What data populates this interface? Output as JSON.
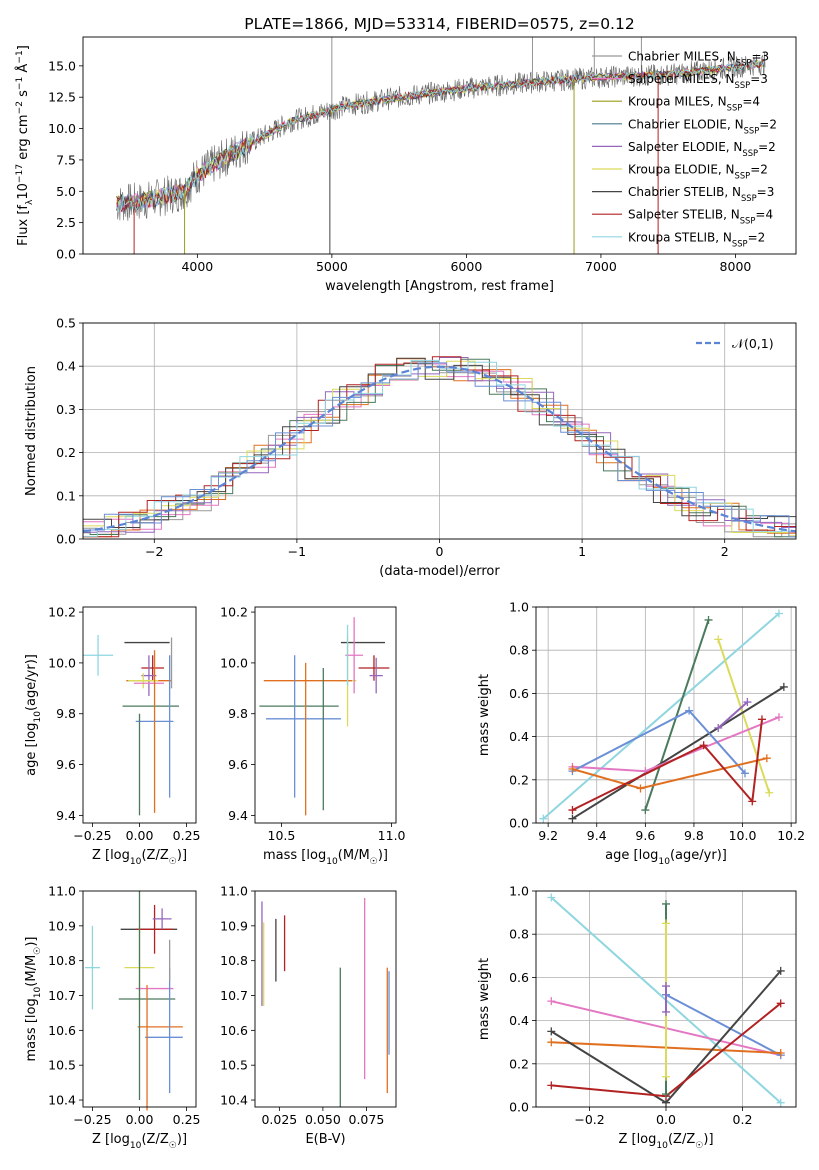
{
  "chart_data": [
    {
      "type": "line",
      "title": "PLATE=1866, MJD=53314, FIBERID=0575, z=0.12",
      "xlabel": "wavelength [Angstrom, rest frame]",
      "ylabel": "Flux [f_λ10^-17 erg cm^-2 s^-1 Å^-1]",
      "xlim": [
        3150,
        8450
      ],
      "ylim": [
        0,
        17.3
      ],
      "xticks": [
        "4000",
        "5000",
        "6000",
        "7000",
        "8000"
      ],
      "yticks": [
        "0.0",
        "2.5",
        "5.0",
        "7.5",
        "10.0",
        "12.5",
        "15.0"
      ],
      "legend_position": "top-right",
      "legend": [
        {
          "label": "Chabrier MILES, N_SSP=3",
          "color": "#999999"
        },
        {
          "label": "Salpeter MILES, N_SSP=3",
          "color": "#e377c2"
        },
        {
          "label": "Kroupa MILES, N_SSP=4",
          "color": "#9c9c1a"
        },
        {
          "label": "Chabrier ELODIE, N_SSP=2",
          "color": "#4a7a8c"
        },
        {
          "label": "Salpeter ELODIE, N_SSP=2",
          "color": "#9467bd"
        },
        {
          "label": "Kroupa ELODIE, N_SSP=2",
          "color": "#dbdb5b"
        },
        {
          "label": "Chabrier STELIB, N_SSP=3",
          "color": "#444444"
        },
        {
          "label": "Salpeter STELIB, N_SSP=4",
          "color": "#b22222"
        },
        {
          "label": "Kroupa STELIB, N_SSP=2",
          "color": "#8fd6e0"
        }
      ],
      "spectrum_start_wavelength": 3400,
      "spectrum_end_wavelength": 8220,
      "continuum_x": [
        3400,
        3600,
        3900,
        4000,
        4300,
        4700,
        5100,
        5500,
        6000,
        6500,
        7000,
        7500,
        8000,
        8220
      ],
      "continuum_y": [
        4.0,
        4.2,
        5.0,
        6.3,
        8.3,
        10.6,
        11.8,
        12.5,
        13.2,
        13.7,
        14.1,
        14.3,
        14.9,
        15.2
      ]
    },
    {
      "type": "histogram",
      "xlabel": "(data-model)/error",
      "ylabel": "Normed distribution",
      "xlim": [
        -2.5,
        2.5
      ],
      "ylim": [
        0,
        0.5
      ],
      "xticks": [
        "−2",
        "−1",
        "0",
        "1",
        "2"
      ],
      "yticks": [
        "0.0",
        "0.1",
        "0.2",
        "0.3",
        "0.4",
        "0.5"
      ],
      "grid": true,
      "legend_position": "top-right",
      "reference_curve": {
        "label": "𝒩(0,1)",
        "color": "#5b84d6",
        "style": "dashed"
      },
      "series_colors": [
        "#999999",
        "#e377c2",
        "#e07020",
        "#4a7a5c",
        "#9467bd",
        "#dbdb5b",
        "#444444",
        "#b22222",
        "#8fd6e0",
        "#6b8fd6"
      ]
    },
    {
      "type": "scatter",
      "xlabel": "Z [log10(Z/Z☉)]",
      "ylabel": "age  [log10(age/yr)]",
      "xlim": [
        -0.3,
        0.3
      ],
      "ylim": [
        9.37,
        10.22
      ],
      "xticks": [
        "−0.25",
        "0.00",
        "0.25"
      ],
      "yticks": [
        "9.4",
        "9.6",
        "9.8",
        "10.0",
        "10.2"
      ],
      "errorbars": [
        {
          "x": -0.22,
          "y": 10.03,
          "xerr": 0.08,
          "yerr": 0.08,
          "color": "#8fd6e0"
        },
        {
          "x": 0.04,
          "y": 10.08,
          "xerr": 0.12,
          "yerr": 0.0,
          "color": "#444444"
        },
        {
          "x": 0.07,
          "y": 9.98,
          "xerr": 0.06,
          "yerr": 0.05,
          "color": "#b22222"
        },
        {
          "x": 0.05,
          "y": 9.95,
          "xerr": 0.04,
          "yerr": 0.08,
          "color": "#9467bd"
        },
        {
          "x": 0.05,
          "y": 9.93,
          "xerr": 0.12,
          "yerr": 0.0,
          "color": "#e07020"
        },
        {
          "x": 0.02,
          "y": 9.93,
          "xerr": 0.08,
          "yerr": 0.03,
          "color": "#dbdb5b"
        },
        {
          "x": 0.05,
          "y": 9.92,
          "xerr": 0.08,
          "yerr": 0.0,
          "color": "#e377c2"
        },
        {
          "x": 0.06,
          "y": 9.83,
          "xerr": 0.15,
          "yerr": 0.0,
          "color": "#4a7a5c"
        },
        {
          "x": 0.08,
          "y": 9.77,
          "xerr": 0.1,
          "yerr": 0.0,
          "color": "#6b8fd6"
        },
        {
          "x": 0.08,
          "y": 9.73,
          "xerr": 0.0,
          "yerr": 0.32,
          "color": "#e07020"
        },
        {
          "x": 0.0,
          "y": 9.6,
          "xerr": 0.0,
          "yerr": 0.2,
          "color": "#4a7a5c"
        },
        {
          "x": 0.16,
          "y": 9.75,
          "xerr": 0.0,
          "yerr": 0.28,
          "color": "#6b8fd6"
        },
        {
          "x": 0.17,
          "y": 10.0,
          "xerr": 0.0,
          "yerr": 0.1,
          "color": "#999999"
        }
      ]
    },
    {
      "type": "scatter",
      "xlabel": "mass [log10(M/M☉)]",
      "ylabel": "",
      "xlim": [
        10.38,
        11.02
      ],
      "ylim": [
        9.37,
        10.22
      ],
      "xticks": [
        "10.5",
        "11.0"
      ],
      "yticks": [
        "9.4",
        "9.6",
        "9.8",
        "10.0",
        "10.2"
      ],
      "errorbars": [
        {
          "x": 10.87,
          "y": 10.08,
          "xerr": 0.1,
          "yerr": 0.0,
          "color": "#444444"
        },
        {
          "x": 10.92,
          "y": 9.98,
          "xerr": 0.07,
          "yerr": 0.05,
          "color": "#b22222"
        },
        {
          "x": 10.93,
          "y": 9.95,
          "xerr": 0.03,
          "yerr": 0.07,
          "color": "#9467bd"
        },
        {
          "x": 10.8,
          "y": 9.93,
          "xerr": 0.04,
          "yerr": 0.18,
          "color": "#dbdb5b"
        },
        {
          "x": 10.62,
          "y": 9.93,
          "xerr": 0.2,
          "yerr": 0.0,
          "color": "#e07020"
        },
        {
          "x": 10.83,
          "y": 10.03,
          "xerr": 0.04,
          "yerr": 0.15,
          "color": "#e377c2"
        },
        {
          "x": 10.58,
          "y": 9.83,
          "xerr": 0.18,
          "yerr": 0.0,
          "color": "#4a7a5c"
        },
        {
          "x": 10.6,
          "y": 9.78,
          "xerr": 0.17,
          "yerr": 0.0,
          "color": "#6b8fd6"
        },
        {
          "x": 10.56,
          "y": 9.75,
          "xerr": 0.0,
          "yerr": 0.28,
          "color": "#6b8fd6"
        },
        {
          "x": 10.61,
          "y": 9.7,
          "xerr": 0.0,
          "yerr": 0.3,
          "color": "#e07020"
        },
        {
          "x": 10.69,
          "y": 9.7,
          "xerr": 0.0,
          "yerr": 0.28,
          "color": "#4a7a5c"
        },
        {
          "x": 10.8,
          "y": 10.03,
          "xerr": 0.0,
          "yerr": 0.12,
          "color": "#8fd6e0"
        }
      ]
    },
    {
      "type": "line",
      "xlabel": "age  [log10(age/yr)]",
      "ylabel": "mass weight",
      "xlim": [
        9.15,
        10.22
      ],
      "ylim": [
        0,
        1.0
      ],
      "xticks": [
        "9.2",
        "9.4",
        "9.6",
        "9.8",
        "10.0",
        "10.2"
      ],
      "yticks": [
        "0.0",
        "0.2",
        "0.4",
        "0.6",
        "0.8",
        "1.0"
      ],
      "grid": true,
      "series": [
        {
          "color": "#8fd6e0",
          "x": [
            9.18,
            10.15
          ],
          "y": [
            0.02,
            0.97
          ]
        },
        {
          "color": "#4a7a5c",
          "x": [
            9.6,
            9.86
          ],
          "y": [
            0.06,
            0.94
          ]
        },
        {
          "color": "#dbdb5b",
          "x": [
            9.9,
            10.11
          ],
          "y": [
            0.85,
            0.14
          ]
        },
        {
          "color": "#444444",
          "x": [
            9.3,
            10.17
          ],
          "y": [
            0.02,
            0.63
          ]
        },
        {
          "color": "#9467bd",
          "x": [
            9.9,
            10.02
          ],
          "y": [
            0.44,
            0.56
          ]
        },
        {
          "color": "#e377c2",
          "x": [
            9.3,
            9.6,
            10.15
          ],
          "y": [
            0.26,
            0.24,
            0.49
          ]
        },
        {
          "color": "#6b8fd6",
          "x": [
            9.3,
            9.78,
            10.01
          ],
          "y": [
            0.24,
            0.52,
            0.23
          ]
        },
        {
          "color": "#e07020",
          "x": [
            9.3,
            9.58,
            10.1
          ],
          "y": [
            0.25,
            0.16,
            0.3
          ]
        },
        {
          "color": "#b22222",
          "x": [
            9.3,
            9.84,
            10.04,
            10.08
          ],
          "y": [
            0.06,
            0.36,
            0.1,
            0.48
          ]
        }
      ]
    },
    {
      "type": "scatter",
      "xlabel": "Z [log10(Z/Z☉)]",
      "ylabel": "mass [log10(M/M☉)]",
      "xlim": [
        -0.3,
        0.3
      ],
      "ylim": [
        10.38,
        11.0
      ],
      "xticks": [
        "−0.25",
        "0.00",
        "0.25"
      ],
      "yticks": [
        "10.4",
        "10.5",
        "10.6",
        "10.7",
        "10.8",
        "10.9",
        "11.0"
      ],
      "errorbars": [
        {
          "x": -0.25,
          "y": 10.78,
          "xerr": 0.04,
          "yerr": 0.12,
          "color": "#8fd6e0"
        },
        {
          "x": 0.05,
          "y": 10.89,
          "xerr": 0.15,
          "yerr": 0.0,
          "color": "#444444"
        },
        {
          "x": 0.08,
          "y": 10.89,
          "xerr": 0.1,
          "yerr": 0.07,
          "color": "#b22222"
        },
        {
          "x": 0.12,
          "y": 10.92,
          "xerr": 0.05,
          "yerr": 0.03,
          "color": "#9467bd"
        },
        {
          "x": 0.0,
          "y": 10.78,
          "xerr": 0.08,
          "yerr": 0.12,
          "color": "#dbdb5b"
        },
        {
          "x": 0.08,
          "y": 10.72,
          "xerr": 0.1,
          "yerr": 0.0,
          "color": "#e377c2"
        },
        {
          "x": 0.04,
          "y": 10.69,
          "xerr": 0.15,
          "yerr": 0.0,
          "color": "#4a7a5c"
        },
        {
          "x": 0.11,
          "y": 10.61,
          "xerr": 0.12,
          "yerr": 0.0,
          "color": "#e07020"
        },
        {
          "x": 0.13,
          "y": 10.58,
          "xerr": 0.1,
          "yerr": 0.0,
          "color": "#6b8fd6"
        },
        {
          "x": 0.04,
          "y": 10.55,
          "xerr": 0.0,
          "yerr": 0.18,
          "color": "#e07020"
        },
        {
          "x": 0.16,
          "y": 10.6,
          "xerr": 0.0,
          "yerr": 0.18,
          "color": "#6b8fd6"
        },
        {
          "x": 0.0,
          "y": 10.7,
          "xerr": 0.0,
          "yerr": 0.3,
          "color": "#4a7a5c"
        },
        {
          "x": 0.16,
          "y": 10.8,
          "xerr": 0.0,
          "yerr": 0.06,
          "color": "#999999"
        }
      ]
    },
    {
      "type": "scatter",
      "xlabel": "E(B-V)",
      "ylabel": "",
      "xlim": [
        0.011,
        0.092
      ],
      "ylim": [
        10.38,
        11.0
      ],
      "xticks": [
        "0.025",
        "0.050",
        "0.075"
      ],
      "yticks": [
        "10.4",
        "10.5",
        "10.6",
        "10.7",
        "10.8",
        "10.9",
        "11.0"
      ],
      "errorbars": [
        {
          "x": 0.015,
          "y": 10.82,
          "xerr": 0.0,
          "yerr": 0.15,
          "color": "#9467bd"
        },
        {
          "x": 0.016,
          "y": 10.79,
          "xerr": 0.0,
          "yerr": 0.12,
          "color": "#dbdb5b"
        },
        {
          "x": 0.023,
          "y": 10.83,
          "xerr": 0.0,
          "yerr": 0.09,
          "color": "#444444"
        },
        {
          "x": 0.028,
          "y": 10.85,
          "xerr": 0.0,
          "yerr": 0.08,
          "color": "#b22222"
        },
        {
          "x": 0.06,
          "y": 10.58,
          "xerr": 0.0,
          "yerr": 0.2,
          "color": "#4a7a5c"
        },
        {
          "x": 0.074,
          "y": 10.72,
          "xerr": 0.0,
          "yerr": 0.26,
          "color": "#e377c2"
        },
        {
          "x": 0.087,
          "y": 10.6,
          "xerr": 0.0,
          "yerr": 0.18,
          "color": "#e07020"
        },
        {
          "x": 0.088,
          "y": 10.65,
          "xerr": 0.0,
          "yerr": 0.12,
          "color": "#6b8fd6"
        }
      ]
    },
    {
      "type": "line",
      "xlabel": "Z [log10(Z/Z☉)]",
      "ylabel": "mass weight",
      "xlim": [
        -0.34,
        0.34
      ],
      "ylim": [
        0,
        1.0
      ],
      "xticks": [
        "−0.2",
        "0.0",
        "0.2"
      ],
      "yticks": [
        "0.0",
        "0.2",
        "0.4",
        "0.6",
        "0.8",
        "1.0"
      ],
      "grid": true,
      "series": [
        {
          "color": "#8fd6e0",
          "x": [
            -0.3,
            0.3
          ],
          "y": [
            0.97,
            0.02
          ]
        },
        {
          "color": "#e377c2",
          "x": [
            -0.3,
            0.3
          ],
          "y": [
            0.49,
            0.24
          ]
        },
        {
          "color": "#6b8fd6",
          "x": [
            0.0,
            0.3
          ],
          "y": [
            0.52,
            0.24
          ]
        },
        {
          "color": "#e07020",
          "x": [
            -0.3,
            0.3
          ],
          "y": [
            0.3,
            0.25
          ]
        },
        {
          "color": "#444444",
          "x": [
            -0.3,
            0.0,
            0.3
          ],
          "y": [
            0.35,
            0.02,
            0.63
          ]
        },
        {
          "color": "#b22222",
          "x": [
            -0.3,
            0.0,
            0.3
          ],
          "y": [
            0.1,
            0.05,
            0.48
          ]
        },
        {
          "color": "#4a7a5c",
          "x": [
            0.0,
            0.0
          ],
          "y": [
            0.06,
            0.94
          ]
        },
        {
          "color": "#dbdb5b",
          "x": [
            0.0,
            0.0
          ],
          "y": [
            0.14,
            0.85
          ]
        },
        {
          "color": "#9467bd",
          "x": [
            0.0,
            0.0
          ],
          "y": [
            0.44,
            0.56
          ]
        }
      ]
    }
  ]
}
